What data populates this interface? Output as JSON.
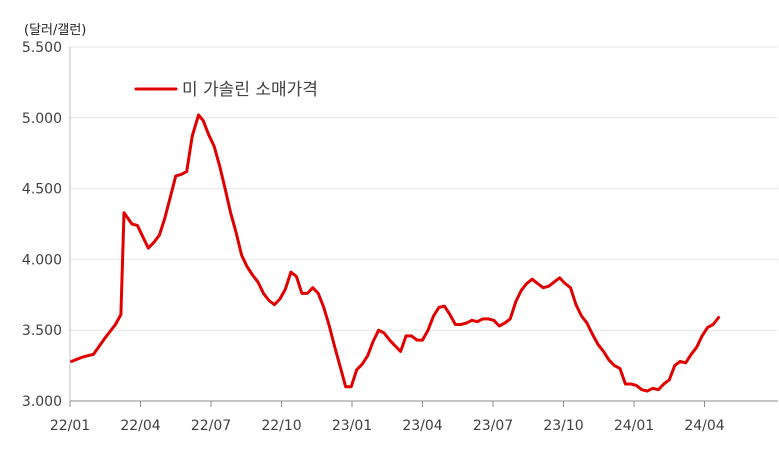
{
  "chart_data": {
    "type": "line",
    "unit_label": "(달러/갤런)",
    "ylim": [
      3.0,
      5.5
    ],
    "y_ticks": [
      3.0,
      3.5,
      4.0,
      4.5,
      5.0,
      5.5
    ],
    "y_tick_labels": [
      "3.000",
      "3.500",
      "4.000",
      "4.500",
      "5.000",
      "5.500"
    ],
    "x_ticks": [
      "22/01",
      "22/04",
      "22/07",
      "22/10",
      "23/01",
      "23/04",
      "23/07",
      "23/10",
      "24/01",
      "24/04"
    ],
    "grid": true,
    "legend_position": "top-left",
    "series": [
      {
        "name": "미 가솔린 소매가격",
        "color": "#e00000",
        "x": [
          "2022-01-03",
          "2022-01-17",
          "2022-01-31",
          "2022-02-14",
          "2022-02-28",
          "2022-03-07",
          "2022-03-11",
          "2022-03-21",
          "2022-03-28",
          "2022-04-04",
          "2022-04-11",
          "2022-04-18",
          "2022-04-25",
          "2022-05-02",
          "2022-05-09",
          "2022-05-16",
          "2022-05-23",
          "2022-05-30",
          "2022-06-06",
          "2022-06-14",
          "2022-06-20",
          "2022-06-27",
          "2022-07-04",
          "2022-07-11",
          "2022-07-18",
          "2022-07-25",
          "2022-08-01",
          "2022-08-08",
          "2022-08-15",
          "2022-08-22",
          "2022-08-29",
          "2022-09-05",
          "2022-09-12",
          "2022-09-19",
          "2022-09-26",
          "2022-10-03",
          "2022-10-10",
          "2022-10-17",
          "2022-10-24",
          "2022-10-31",
          "2022-11-07",
          "2022-11-14",
          "2022-11-21",
          "2022-11-28",
          "2022-12-05",
          "2022-12-12",
          "2022-12-19",
          "2022-12-26",
          "2023-01-02",
          "2023-01-09",
          "2023-01-16",
          "2023-01-23",
          "2023-01-30",
          "2023-02-06",
          "2023-02-13",
          "2023-02-20",
          "2023-02-27",
          "2023-03-06",
          "2023-03-13",
          "2023-03-20",
          "2023-03-27",
          "2023-04-03",
          "2023-04-10",
          "2023-04-17",
          "2023-04-24",
          "2023-05-01",
          "2023-05-08",
          "2023-05-15",
          "2023-05-22",
          "2023-05-29",
          "2023-06-05",
          "2023-06-12",
          "2023-06-19",
          "2023-06-26",
          "2023-07-03",
          "2023-07-10",
          "2023-07-17",
          "2023-07-24",
          "2023-07-31",
          "2023-08-07",
          "2023-08-14",
          "2023-08-21",
          "2023-08-28",
          "2023-09-04",
          "2023-09-11",
          "2023-09-18",
          "2023-09-25",
          "2023-10-02",
          "2023-10-09",
          "2023-10-16",
          "2023-10-23",
          "2023-10-30",
          "2023-11-06",
          "2023-11-13",
          "2023-11-20",
          "2023-11-27",
          "2023-12-04",
          "2023-12-11",
          "2023-12-18",
          "2023-12-25",
          "2024-01-01",
          "2024-01-08",
          "2024-01-15",
          "2024-01-22",
          "2024-01-29",
          "2024-02-05",
          "2024-02-12",
          "2024-02-19",
          "2024-02-26",
          "2024-03-04",
          "2024-03-11",
          "2024-03-18",
          "2024-03-25",
          "2024-04-01",
          "2024-04-08"
        ],
        "values": [
          3.28,
          3.31,
          3.33,
          3.44,
          3.54,
          3.61,
          4.33,
          4.25,
          4.24,
          4.16,
          4.08,
          4.12,
          4.17,
          4.29,
          4.44,
          4.59,
          4.6,
          4.62,
          4.87,
          5.02,
          4.98,
          4.88,
          4.8,
          4.66,
          4.5,
          4.33,
          4.19,
          4.03,
          3.95,
          3.89,
          3.84,
          3.76,
          3.71,
          3.68,
          3.72,
          3.79,
          3.91,
          3.88,
          3.76,
          3.76,
          3.8,
          3.76,
          3.66,
          3.53,
          3.38,
          3.24,
          3.1,
          3.1,
          3.22,
          3.26,
          3.32,
          3.42,
          3.5,
          3.48,
          3.43,
          3.39,
          3.35,
          3.46,
          3.46,
          3.43,
          3.43,
          3.5,
          3.6,
          3.66,
          3.67,
          3.61,
          3.54,
          3.54,
          3.55,
          3.57,
          3.56,
          3.58,
          3.58,
          3.57,
          3.53,
          3.55,
          3.58,
          3.7,
          3.78,
          3.83,
          3.86,
          3.83,
          3.8,
          3.81,
          3.84,
          3.87,
          3.83,
          3.8,
          3.68,
          3.6,
          3.55,
          3.47,
          3.4,
          3.35,
          3.29,
          3.25,
          3.23,
          3.12,
          3.12,
          3.11,
          3.08,
          3.07,
          3.09,
          3.08,
          3.12,
          3.15,
          3.25,
          3.28,
          3.27,
          3.33,
          3.38,
          3.46,
          3.52,
          3.54,
          3.59
        ]
      }
    ]
  }
}
